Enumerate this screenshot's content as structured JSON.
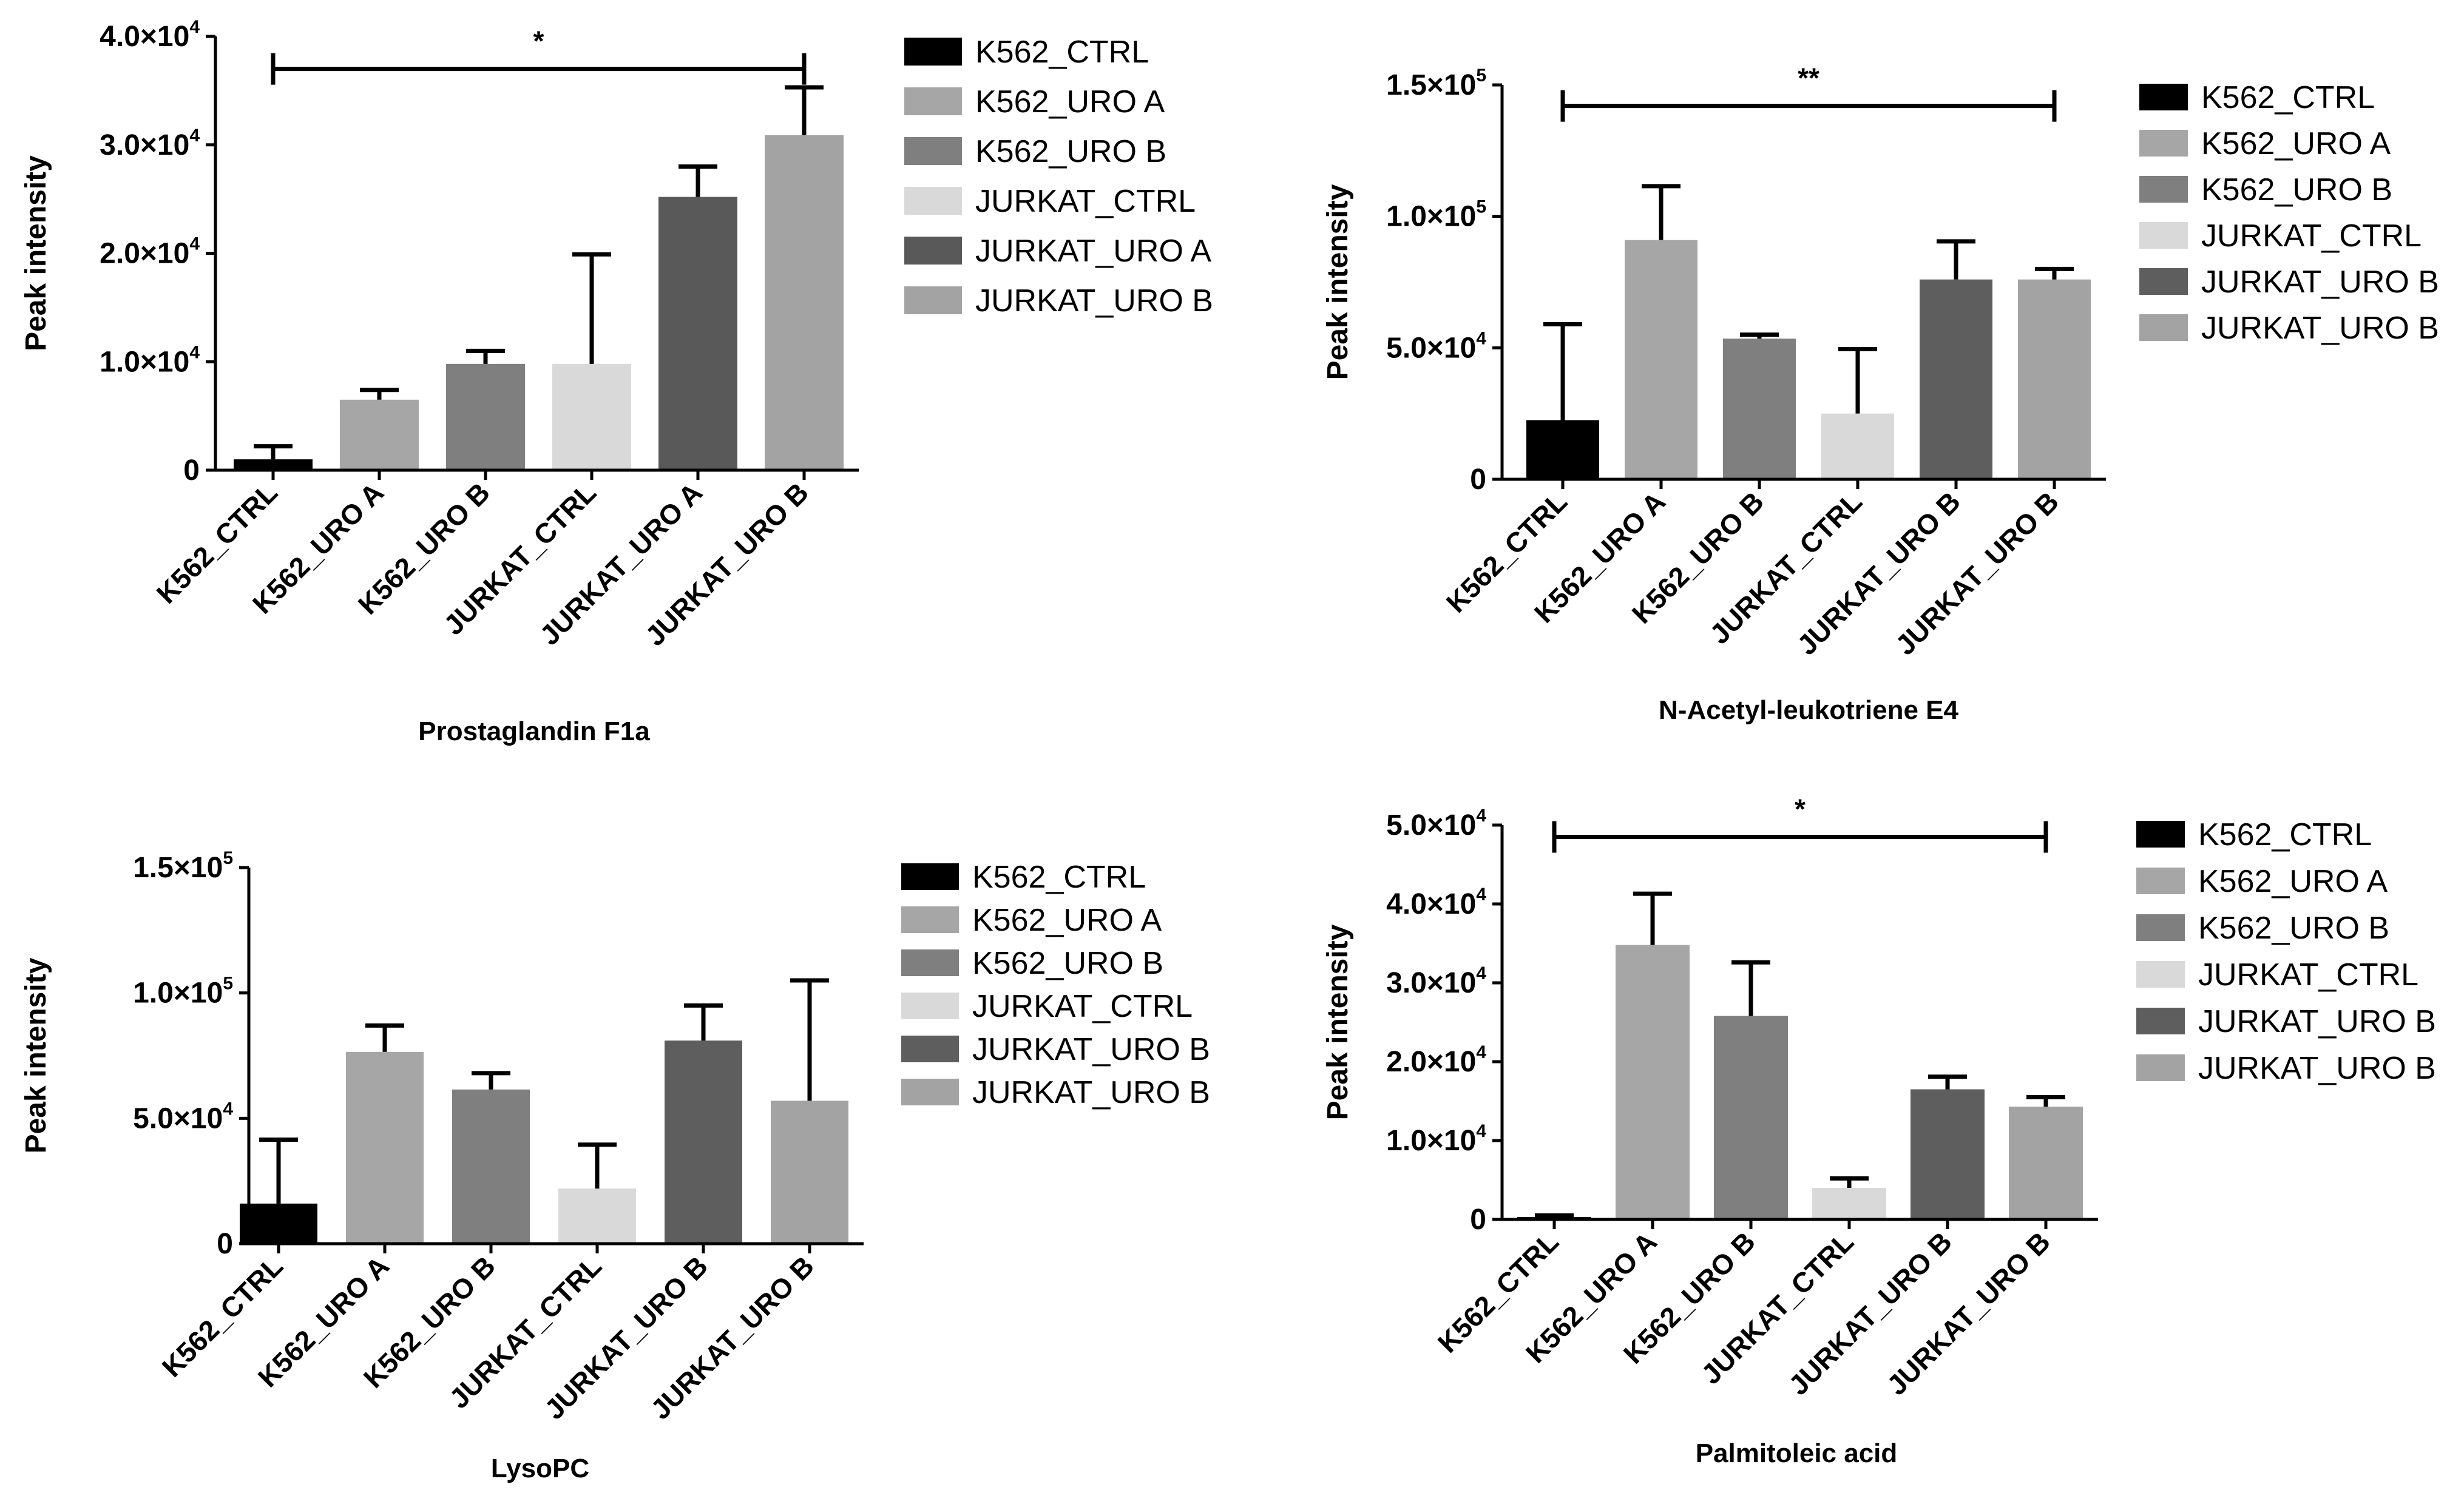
{
  "colors": {
    "K562_CTRL": "#000000",
    "K562_URO A": "#a6a6a6",
    "K562_URO B": "#7f7f7f",
    "JURKAT_CTRL": "#d9d9d9",
    "JURKAT_URO A": "#595959",
    "JURKAT_URO B": "#5e5e5e",
    "JURKAT_URO B (2)": "#a3a3a3"
  },
  "chart_data": [
    {
      "type": "bar",
      "title": "Prostaglandin F1a",
      "ylabel": "Peak intensity",
      "ylim": [
        0,
        40000
      ],
      "tick_values": [
        0,
        10000,
        20000,
        30000,
        40000
      ],
      "tick_labels": [
        {
          "mantissa": "0",
          "exp": ""
        },
        {
          "mantissa": "1.0×10",
          "exp": "4"
        },
        {
          "mantissa": "2.0×10",
          "exp": "4"
        },
        {
          "mantissa": "3.0×10",
          "exp": "4"
        },
        {
          "mantissa": "4.0×10",
          "exp": "4"
        }
      ],
      "categories": [
        "K562_CTRL",
        "K562_URO A",
        "K562_URO B",
        "JURKAT_CTRL",
        "JURKAT_URO A",
        "JURKAT_URO B"
      ],
      "values": [
        1000,
        6500,
        9800,
        9800,
        25200,
        30900
      ],
      "errors": [
        1200,
        900,
        1200,
        10100,
        2800,
        4400
      ],
      "bar_colors": [
        "#000000",
        "#a6a6a6",
        "#7f7f7f",
        "#d9d9d9",
        "#595959",
        "#a3a3a3"
      ],
      "significance": {
        "label": "*",
        "from": 0,
        "to": 5,
        "y": 37000
      },
      "legend": [
        "K562_CTRL",
        "K562_URO A",
        "K562_URO B",
        "JURKAT_CTRL",
        "JURKAT_URO A",
        "JURKAT_URO B"
      ]
    },
    {
      "type": "bar",
      "title": "N-Acetyl-leukotriene E4",
      "ylabel": "Peak intensity",
      "ylim": [
        0,
        150000
      ],
      "tick_values": [
        0,
        50000,
        100000,
        150000
      ],
      "tick_labels": [
        {
          "mantissa": "0",
          "exp": ""
        },
        {
          "mantissa": "5.0×10",
          "exp": "4"
        },
        {
          "mantissa": "1.0×10",
          "exp": "5"
        },
        {
          "mantissa": "1.5×10",
          "exp": "5"
        }
      ],
      "categories": [
        "K562_CTRL",
        "K562_URO A",
        "K562_URO B",
        "JURKAT_CTRL",
        "JURKAT_URO B",
        "JURKAT_URO B"
      ],
      "values": [
        22500,
        91000,
        53500,
        25000,
        76000,
        76000
      ],
      "errors": [
        36500,
        20500,
        1500,
        24500,
        14500,
        4000
      ],
      "bar_colors": [
        "#000000",
        "#a6a6a6",
        "#7f7f7f",
        "#d9d9d9",
        "#5e5e5e",
        "#a3a3a3"
      ],
      "significance": {
        "label": "**",
        "from": 0,
        "to": 5,
        "y": 142000
      },
      "legend": [
        "K562_CTRL",
        "K562_URO A",
        "K562_URO B",
        "JURKAT_CTRL",
        "JURKAT_URO B",
        "JURKAT_URO B"
      ]
    },
    {
      "type": "bar",
      "title": "LysoPC",
      "ylabel": "Peak intensity",
      "ylim": [
        0,
        150000
      ],
      "tick_values": [
        0,
        50000,
        100000,
        150000
      ],
      "tick_labels": [
        {
          "mantissa": "0",
          "exp": ""
        },
        {
          "mantissa": "5.0×10",
          "exp": "4"
        },
        {
          "mantissa": "1.0×10",
          "exp": "5"
        },
        {
          "mantissa": "1.5×10",
          "exp": "5"
        }
      ],
      "categories": [
        "K562_CTRL",
        "K562_URO A",
        "K562_URO B",
        "JURKAT_CTRL",
        "JURKAT_URO B",
        "JURKAT_URO B"
      ],
      "values": [
        16000,
        76500,
        61500,
        22000,
        81000,
        57000
      ],
      "errors": [
        25500,
        10500,
        6500,
        17500,
        14000,
        48000
      ],
      "bar_colors": [
        "#000000",
        "#a6a6a6",
        "#7f7f7f",
        "#d9d9d9",
        "#5e5e5e",
        "#a3a3a3"
      ],
      "significance": null,
      "legend": [
        "K562_CTRL",
        "K562_URO A",
        "K562_URO B",
        "JURKAT_CTRL",
        "JURKAT_URO B",
        "JURKAT_URO B"
      ]
    },
    {
      "type": "bar",
      "title": "Palmitoleic acid",
      "ylabel": "Peak intensity",
      "ylim": [
        0,
        50000
      ],
      "tick_values": [
        0,
        10000,
        20000,
        30000,
        40000,
        50000
      ],
      "tick_labels": [
        {
          "mantissa": "0",
          "exp": ""
        },
        {
          "mantissa": "1.0×10",
          "exp": "4"
        },
        {
          "mantissa": "2.0×10",
          "exp": "4"
        },
        {
          "mantissa": "3.0×10",
          "exp": "4"
        },
        {
          "mantissa": "4.0×10",
          "exp": "4"
        },
        {
          "mantissa": "5.0×10",
          "exp": "4"
        }
      ],
      "categories": [
        "K562_CTRL",
        "K562_URO A",
        "K562_URO B",
        "JURKAT_CTRL",
        "JURKAT_URO B",
        "JURKAT_URO B"
      ],
      "values": [
        300,
        34800,
        25800,
        4000,
        16500,
        14300
      ],
      "errors": [
        200,
        6500,
        6800,
        1200,
        1600,
        1200
      ],
      "bar_colors": [
        "#000000",
        "#a6a6a6",
        "#7f7f7f",
        "#d9d9d9",
        "#5e5e5e",
        "#a3a3a3"
      ],
      "significance": {
        "label": "*",
        "from": 0,
        "to": 5,
        "y": 48500
      },
      "legend": [
        "K562_CTRL",
        "K562_URO A",
        "K562_URO B",
        "JURKAT_CTRL",
        "JURKAT_URO B",
        "JURKAT_URO B"
      ]
    }
  ]
}
